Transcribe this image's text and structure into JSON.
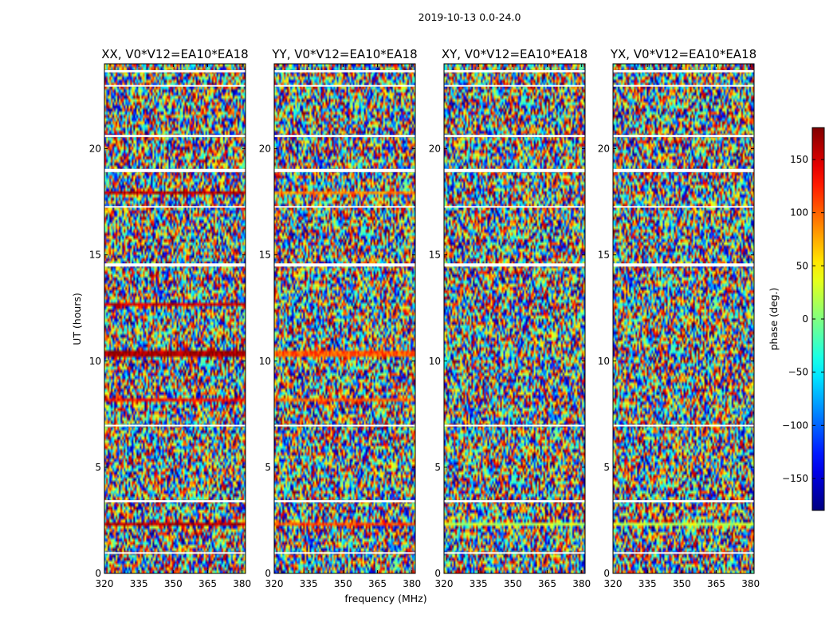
{
  "chart_data": {
    "type": "heatmap",
    "suptitle": "2019-10-13 0.0-24.0",
    "xlabel": "frequency (MHz)",
    "ylabel": "UT (hours)",
    "xlim": [
      320,
      381.5
    ],
    "ylim": [
      0,
      24
    ],
    "xticks": [
      320,
      335,
      350,
      365,
      380
    ],
    "yticks": [
      0,
      5,
      10,
      15,
      20
    ],
    "colorbar": {
      "label": "phase (deg.)",
      "range": [
        -180,
        180
      ],
      "ticks": [
        150,
        100,
        50,
        0,
        -50,
        -100,
        -150
      ],
      "tick_labels": [
        "150",
        "100",
        "50",
        "0",
        "−50",
        "−100",
        "−150"
      ],
      "colormap": "jet"
    },
    "panels": [
      {
        "title": "XX, V0*V12=EA10*EA18",
        "flagged_hours": [
          [
            0.95,
            1.0
          ],
          [
            3.35,
            3.45
          ],
          [
            6.95,
            7.0
          ],
          [
            14.45,
            14.6
          ],
          [
            17.25,
            17.3
          ],
          [
            18.9,
            19.05
          ],
          [
            20.55,
            20.65
          ],
          [
            22.95,
            23.0
          ],
          [
            23.6,
            23.7
          ]
        ],
        "coherent_bands": [
          {
            "ut": [
              2.2,
              2.45
            ],
            "phase": 160
          },
          {
            "ut": [
              10.2,
              10.45
            ],
            "phase": 165
          },
          {
            "ut": [
              12.6,
              12.8
            ],
            "phase": 150
          },
          {
            "ut": [
              17.8,
              18.05
            ],
            "phase": 160
          },
          {
            "ut": [
              8.1,
              8.25
            ],
            "phase": 130
          }
        ]
      },
      {
        "title": "YY, V0*V12=EA10*EA18",
        "flagged_hours": [
          [
            0.95,
            1.0
          ],
          [
            3.35,
            3.45
          ],
          [
            6.95,
            7.0
          ],
          [
            14.45,
            14.6
          ],
          [
            17.25,
            17.3
          ],
          [
            18.9,
            19.05
          ],
          [
            20.55,
            20.65
          ],
          [
            22.95,
            23.0
          ],
          [
            23.6,
            23.7
          ]
        ],
        "coherent_bands": [
          {
            "ut": [
              2.2,
              2.45
            ],
            "phase": 110
          },
          {
            "ut": [
              10.2,
              10.45
            ],
            "phase": 105
          },
          {
            "ut": [
              17.8,
              18.05
            ],
            "phase": 90
          },
          {
            "ut": [
              8.1,
              8.25
            ],
            "phase": 100
          }
        ]
      },
      {
        "title": "XY, V0*V12=EA10*EA18",
        "flagged_hours": [
          [
            0.95,
            1.0
          ],
          [
            3.35,
            3.45
          ],
          [
            6.95,
            7.0
          ],
          [
            14.45,
            14.6
          ],
          [
            17.25,
            17.3
          ],
          [
            18.9,
            19.05
          ],
          [
            20.55,
            20.65
          ],
          [
            22.95,
            23.0
          ],
          [
            23.6,
            23.7
          ]
        ],
        "coherent_bands": [
          {
            "ut": [
              2.2,
              2.35
            ],
            "phase": 20
          }
        ]
      },
      {
        "title": "YX, V0*V12=EA10*EA18",
        "flagged_hours": [
          [
            0.95,
            1.0
          ],
          [
            3.35,
            3.45
          ],
          [
            6.95,
            7.0
          ],
          [
            14.45,
            14.6
          ],
          [
            17.25,
            17.3
          ],
          [
            18.9,
            19.05
          ],
          [
            20.55,
            20.65
          ],
          [
            22.95,
            23.0
          ],
          [
            23.6,
            23.7
          ]
        ],
        "coherent_bands": [
          {
            "ut": [
              2.2,
              2.35
            ],
            "phase": 20
          }
        ]
      }
    ]
  }
}
